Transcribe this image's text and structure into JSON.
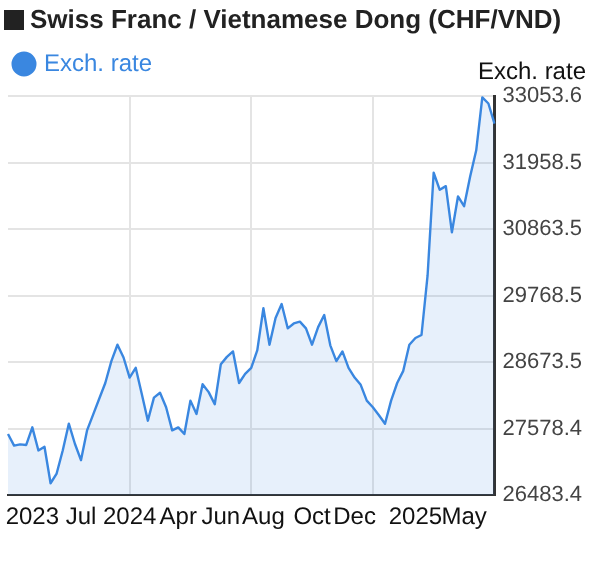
{
  "chart_data": {
    "type": "area",
    "title": "Swiss Franc / Vietnamese Dong (CHF/VND)",
    "ylabel": "Exch. rate",
    "categories": [
      null,
      null,
      null,
      null,
      "2023",
      null,
      null,
      null,
      null,
      null,
      null,
      null,
      "Jul",
      null,
      null,
      null,
      null,
      null,
      null,
      null,
      "2024",
      null,
      null,
      null,
      null,
      null,
      null,
      null,
      "Apr",
      null,
      null,
      null,
      null,
      null,
      null,
      "Jun",
      null,
      null,
      null,
      null,
      null,
      null,
      "Aug",
      null,
      null,
      null,
      null,
      null,
      null,
      null,
      "Oct",
      null,
      null,
      null,
      null,
      null,
      null,
      "Dec",
      null,
      null,
      null,
      null,
      null,
      null,
      null,
      null,
      null,
      "2025",
      null,
      null,
      null,
      null,
      null,
      null,
      null,
      "May",
      null,
      null,
      null,
      null,
      null
    ],
    "ylim": [
      26483.4,
      33053.6
    ],
    "yticks": [
      26483.4,
      27578.4,
      28673.5,
      29768.5,
      30863.5,
      31958.5,
      33053.6
    ],
    "grid": true,
    "legend": "top left",
    "series": [
      {
        "name": "Exch. rate",
        "color": "#3a87e0",
        "values": [
          27490,
          27300,
          27320,
          27310,
          27600,
          27220,
          27280,
          26680,
          26840,
          27220,
          27660,
          27330,
          27060,
          27550,
          27810,
          28070,
          28330,
          28690,
          28960,
          28750,
          28420,
          28580,
          28150,
          27710,
          28090,
          28170,
          27930,
          27550,
          27600,
          27490,
          28040,
          27820,
          28310,
          28180,
          27980,
          28640,
          28760,
          28850,
          28330,
          28480,
          28580,
          28870,
          29560,
          28960,
          29400,
          29630,
          29230,
          29310,
          29340,
          29230,
          28960,
          29250,
          29450,
          28950,
          28690,
          28850,
          28580,
          28420,
          28300,
          28040,
          27930,
          27800,
          27660,
          28040,
          28330,
          28530,
          28960,
          29070,
          29120,
          30100,
          31790,
          31510,
          31570,
          30810,
          31400,
          31240,
          31730,
          32160,
          33030,
          32930,
          32600
        ]
      }
    ]
  }
}
